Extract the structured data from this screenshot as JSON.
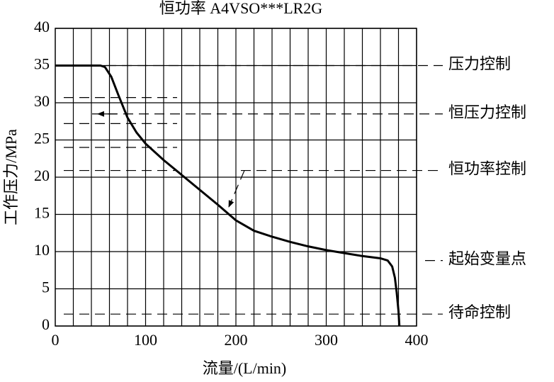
{
  "chart_data": {
    "type": "line",
    "title": "恒功率  A4VSO***LR2G",
    "x_label": "流量/(L/min)",
    "y_label": "工作压力/MPa",
    "xlim": [
      0,
      400
    ],
    "ylim": [
      0,
      40
    ],
    "xticks": [
      0,
      100,
      200,
      300,
      400
    ],
    "yticks": [
      0,
      5,
      10,
      15,
      20,
      25,
      30,
      35,
      40
    ],
    "xgrid": [
      20,
      40,
      60,
      80,
      100,
      120,
      140,
      160,
      180,
      200,
      220,
      240,
      260,
      280,
      300,
      320,
      340,
      360,
      380,
      400
    ],
    "grid": true,
    "color": "#000000",
    "x": [
      0,
      50,
      55,
      62,
      70,
      80,
      90,
      100,
      120,
      140,
      160,
      180,
      200,
      220,
      240,
      260,
      280,
      300,
      320,
      340,
      360,
      368,
      373,
      376,
      378,
      380,
      381
    ],
    "values": [
      35,
      35,
      34.8,
      33.5,
      31,
      28,
      26,
      24.5,
      22.3,
      20.3,
      18.3,
      16.3,
      14.2,
      12.8,
      12,
      11.3,
      10.7,
      10.2,
      9.8,
      9.4,
      9.1,
      8.8,
      8,
      6.5,
      4.5,
      2,
      0
    ],
    "annotations": [
      {
        "text": "压力控制",
        "y": 35
      },
      {
        "text": "恒压力控制",
        "y": 28.5,
        "levels": [
          30.7,
          27.2,
          24,
          20.9
        ]
      },
      {
        "text": "恒功率控制",
        "y": 20.9
      },
      {
        "text": "起始变量点",
        "y": 8.8
      },
      {
        "text": "待命控制",
        "y": 1.6
      }
    ]
  }
}
